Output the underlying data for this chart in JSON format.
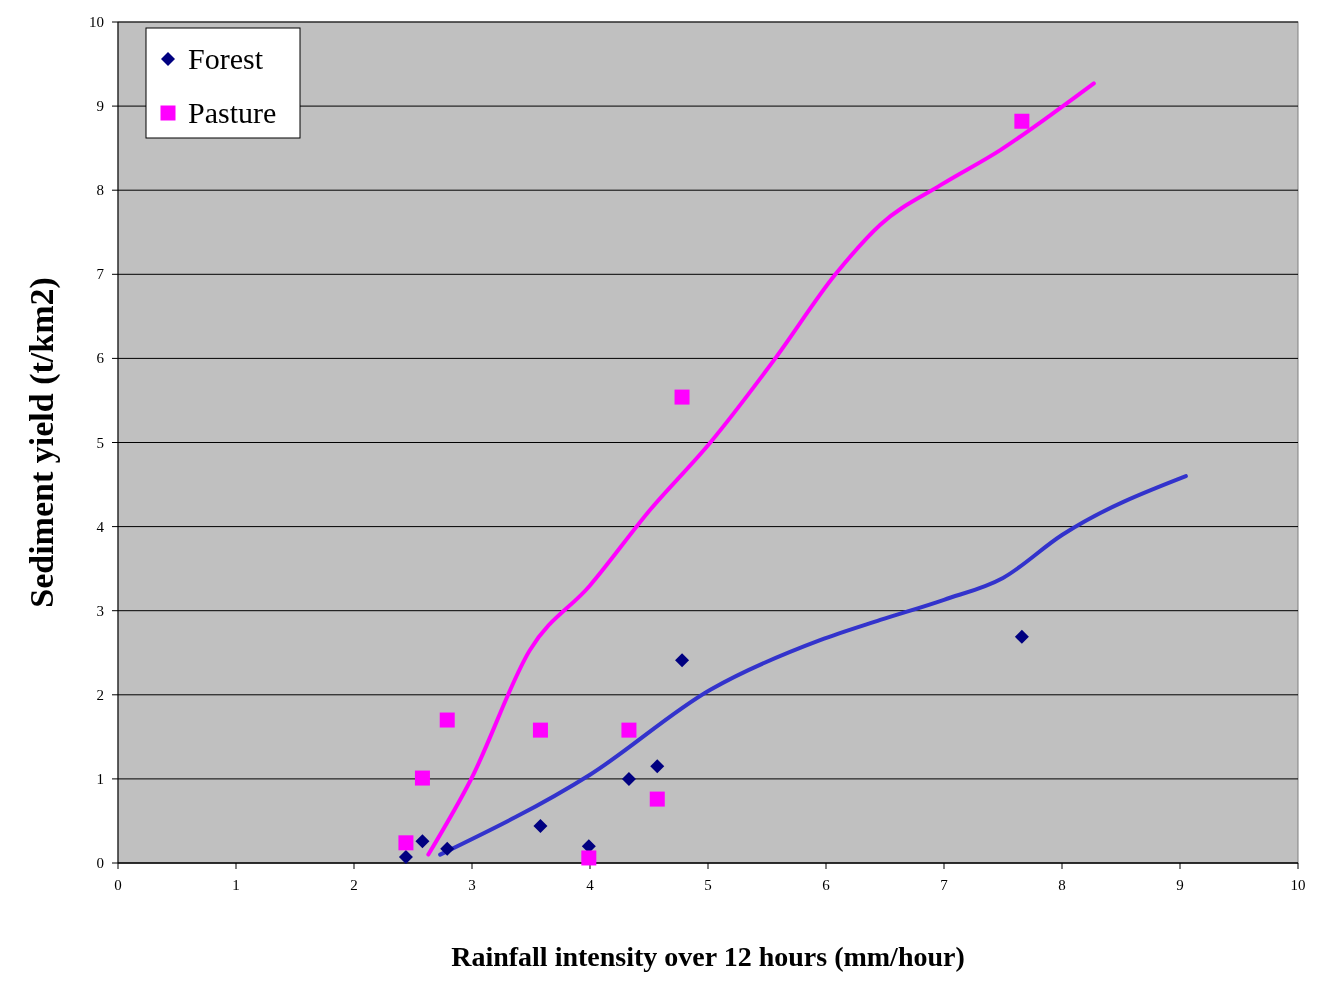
{
  "chart_data": {
    "type": "scatter",
    "xlabel": "Rainfall intensity over 12 hours (mm/hour)",
    "ylabel": "Sediment yield (t/km2)",
    "xlim": [
      0,
      10
    ],
    "ylim": [
      0,
      10
    ],
    "xticks": [
      0,
      1,
      2,
      3,
      4,
      5,
      6,
      7,
      8,
      9,
      10
    ],
    "yticks": [
      0,
      1,
      2,
      3,
      4,
      5,
      6,
      7,
      8,
      9,
      10
    ],
    "grid": "y",
    "legend": "top left",
    "series": [
      {
        "name": "Forest",
        "marker": "diamond",
        "color": "#000080",
        "x": [
          2.44,
          2.58,
          2.79,
          3.58,
          3.99,
          4.33,
          4.57,
          4.78,
          7.66
        ],
        "values": [
          0.07,
          0.26,
          0.17,
          0.44,
          0.2,
          1.0,
          1.15,
          2.41,
          2.69
        ]
      },
      {
        "name": "Pasture",
        "marker": "square",
        "color": "#ff00ff",
        "x": [
          2.44,
          2.58,
          2.79,
          3.58,
          3.99,
          4.33,
          4.57,
          4.78,
          7.66
        ],
        "values": [
          0.24,
          1.01,
          1.7,
          1.58,
          0.06,
          1.58,
          0.76,
          5.54,
          8.82
        ]
      },
      {
        "type": "line",
        "marker": "none",
        "color": "#ff00ff",
        "x": [
          2.63,
          2.99,
          3.49,
          4.0,
          4.51,
          5.02,
          5.57,
          6.08,
          6.46,
          6.97,
          7.48,
          7.9,
          8.27
        ],
        "values": [
          0.1,
          0.99,
          2.53,
          3.3,
          4.2,
          5.0,
          6.0,
          7.0,
          7.59,
          8.06,
          8.48,
          8.89,
          9.27
        ]
      },
      {
        "type": "line",
        "marker": "none",
        "color": "#3333cc",
        "x": [
          2.73,
          4.0,
          5.02,
          5.95,
          6.46,
          7.0,
          7.5,
          8.0,
          9.05
        ],
        "values": [
          0.1,
          1.05,
          2.06,
          2.65,
          2.89,
          3.13,
          3.39,
          3.9,
          4.6
        ]
      }
    ]
  }
}
